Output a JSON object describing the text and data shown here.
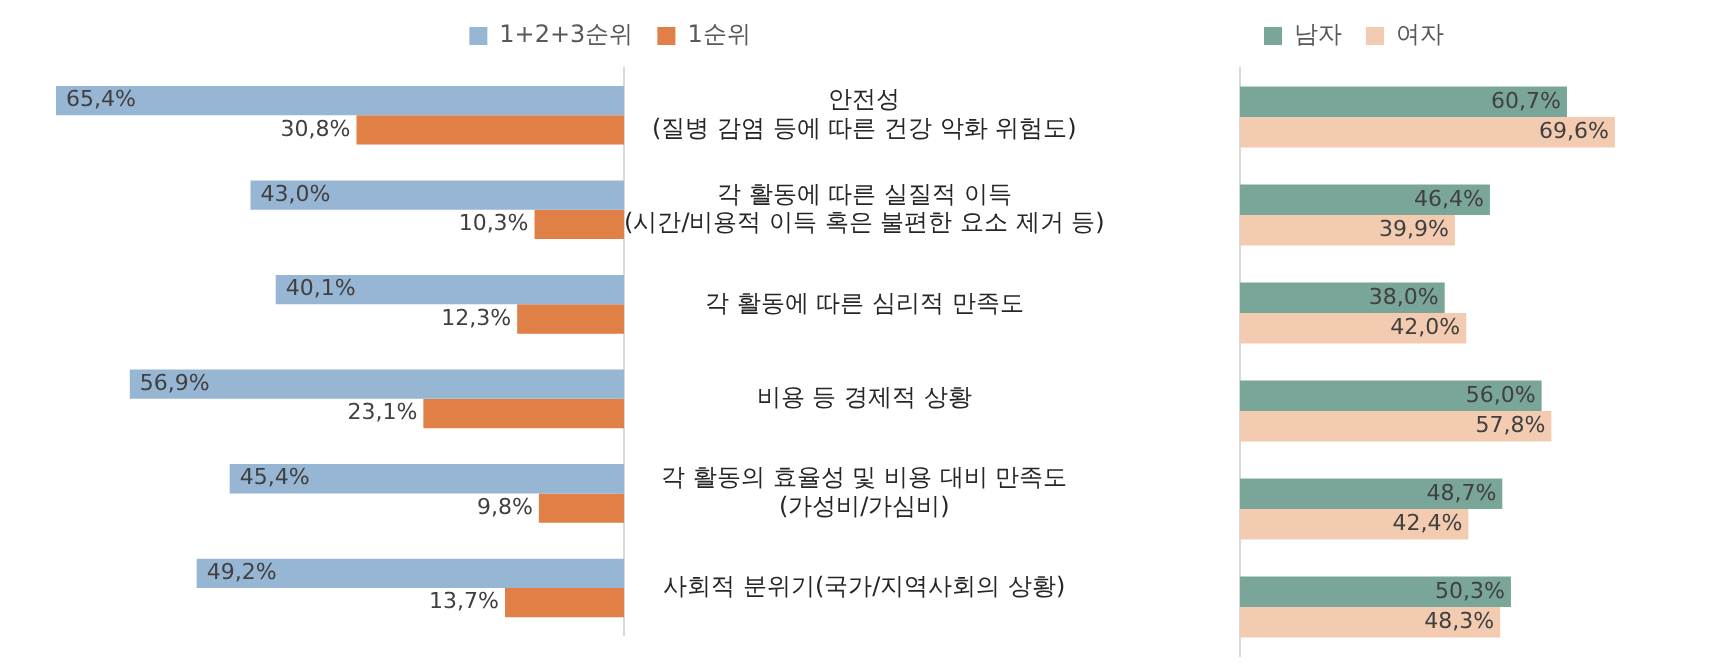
{
  "chart_data": [
    {
      "type": "bar",
      "orientation": "horizontal",
      "categories": [
        "안전성\n(질병 감염 등에 따른 건강 악화 위험도)",
        "각 활동에 따른 실질적 이득\n(시간/비용적 이득 혹은 불편한 요소 제거 등)",
        "각 활동에 따른 심리적 만족도",
        "비용 등 경제적 상황",
        "각 활동의 효율성 및 비용 대비 만족도\n(가성비/가심비)",
        "사회적 분위기(국가/지역사회의 상황)"
      ],
      "series": [
        {
          "name": "1+2+3순위",
          "color": "#97b6d4",
          "values": [
            65.4,
            43.0,
            40.1,
            56.9,
            45.4,
            49.2
          ],
          "value_labels": [
            "65,4%",
            "43,0%",
            "40,1%",
            "56,9%",
            "45,4%",
            "49,2%"
          ]
        },
        {
          "name": "1순위",
          "color": "#e07f46",
          "values": [
            30.8,
            10.3,
            12.3,
            23.1,
            9.8,
            13.7
          ],
          "value_labels": [
            "30,8%",
            "10,3%",
            "12,3%",
            "23,1%",
            "9,8%",
            "13,7%"
          ]
        }
      ],
      "tick_labels": "y",
      "legend": "top"
    },
    {
      "type": "bar",
      "orientation": "horizontal",
      "series": [
        {
          "name": "남자",
          "color": "#7aa69a",
          "values": [
            60.7,
            46.4,
            38.0,
            56.0,
            48.7,
            50.3
          ],
          "value_labels": [
            "60,7%",
            "46,4%",
            "38,0%",
            "56,0%",
            "48,7%",
            "50,3%"
          ]
        },
        {
          "name": "여자",
          "color": "#f2cbb0",
          "values": [
            69.6,
            39.9,
            42.0,
            57.8,
            42.4,
            48.3
          ],
          "value_labels": [
            "69,6%",
            "39,9%",
            "42,0%",
            "57,8%",
            "42,4%",
            "48,3%"
          ]
        }
      ],
      "tick_labels": false,
      "legend": "top"
    }
  ]
}
